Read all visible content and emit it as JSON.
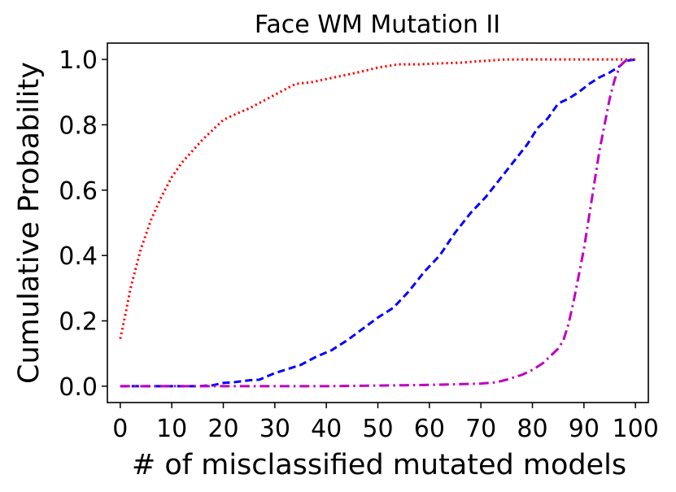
{
  "chart_data": {
    "type": "line",
    "title": "Face WM Mutation II",
    "xlabel": "# of misclassified mutated models",
    "ylabel": "Cumulative Probability",
    "xlim": [
      -2.5,
      102.5
    ],
    "ylim": [
      -0.05,
      1.05
    ],
    "xticks": [
      0,
      10,
      20,
      30,
      40,
      50,
      60,
      70,
      80,
      90,
      100
    ],
    "xtick_labels": [
      "0",
      "10",
      "20",
      "30",
      "40",
      "50",
      "60",
      "70",
      "80",
      "90",
      "100"
    ],
    "yticks": [
      0.0,
      0.2,
      0.4,
      0.6,
      0.8,
      1.0
    ],
    "ytick_labels": [
      "0.0",
      "0.2",
      "0.4",
      "0.6",
      "0.8",
      "1.0"
    ],
    "grid": false,
    "series": [
      {
        "name": "red-dotted",
        "color": "#ff0000",
        "style": "dotted",
        "x": [
          0,
          1,
          2,
          4,
          6,
          8,
          10,
          12,
          14,
          16,
          18,
          20,
          22,
          25,
          28,
          31,
          34,
          37,
          40,
          43,
          46,
          50,
          54,
          58,
          62,
          66,
          70,
          75,
          80,
          85,
          90,
          95,
          100
        ],
        "y": [
          0.145,
          0.22,
          0.3,
          0.42,
          0.51,
          0.58,
          0.64,
          0.685,
          0.72,
          0.755,
          0.785,
          0.815,
          0.83,
          0.85,
          0.875,
          0.9,
          0.925,
          0.93,
          0.94,
          0.95,
          0.96,
          0.975,
          0.985,
          0.985,
          0.988,
          0.99,
          0.995,
          1.0,
          1.0,
          1.0,
          1.0,
          1.0,
          1.0
        ]
      },
      {
        "name": "blue-dashed",
        "color": "#0000ff",
        "style": "dashed",
        "x": [
          0,
          5,
          10,
          15,
          18,
          20,
          22,
          25,
          27,
          30,
          32,
          35,
          38,
          41,
          44,
          47,
          50,
          53,
          56,
          59,
          62,
          65,
          68,
          71,
          74,
          77,
          79,
          81,
          83,
          85,
          87,
          89,
          91,
          93,
          95,
          97,
          98,
          100
        ],
        "y": [
          0.0,
          0.0,
          0.0,
          0.0,
          0.003,
          0.01,
          0.012,
          0.018,
          0.02,
          0.04,
          0.05,
          0.065,
          0.09,
          0.11,
          0.14,
          0.175,
          0.21,
          0.24,
          0.29,
          0.35,
          0.4,
          0.47,
          0.53,
          0.58,
          0.64,
          0.7,
          0.74,
          0.79,
          0.82,
          0.865,
          0.88,
          0.9,
          0.925,
          0.945,
          0.96,
          0.98,
          0.995,
          1.0
        ]
      },
      {
        "name": "magenta-dashdot",
        "color": "#bf00bf",
        "style": "dashdot",
        "x": [
          0,
          10,
          20,
          30,
          40,
          50,
          55,
          60,
          65,
          70,
          73,
          75,
          78,
          80,
          82,
          84,
          85,
          86,
          87,
          88,
          89,
          90,
          91,
          92,
          93,
          94,
          95,
          96,
          97,
          98,
          100
        ],
        "y": [
          0.0,
          0.0,
          0.0,
          0.0,
          0.0,
          0.002,
          0.003,
          0.004,
          0.006,
          0.008,
          0.012,
          0.02,
          0.035,
          0.05,
          0.07,
          0.1,
          0.115,
          0.14,
          0.19,
          0.26,
          0.34,
          0.42,
          0.52,
          0.62,
          0.72,
          0.8,
          0.88,
          0.94,
          0.98,
          0.995,
          1.0
        ]
      }
    ]
  }
}
